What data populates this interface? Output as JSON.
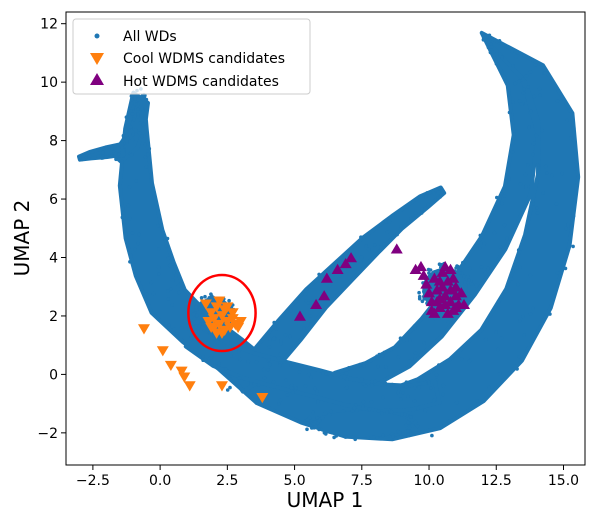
{
  "chart_data": {
    "type": "scatter",
    "xlabel": "UMAP 1",
    "ylabel": "UMAP 2",
    "xlim": [
      -3.5,
      15.8
    ],
    "ylim": [
      -3.1,
      12.4
    ],
    "xticks": [
      -2.5,
      0.0,
      2.5,
      5.0,
      7.5,
      10.0,
      12.5,
      15.0
    ],
    "xtick_labels": [
      "−2.5",
      "0.0",
      "2.5",
      "5.0",
      "7.5",
      "10.0",
      "12.5",
      "15.0"
    ],
    "yticks": [
      -2,
      0,
      2,
      4,
      6,
      8,
      10,
      12
    ],
    "ytick_labels": [
      "−2",
      "0",
      "2",
      "4",
      "6",
      "8",
      "10",
      "12"
    ],
    "legend_position": "top-left",
    "series": [
      {
        "name": "All WDs",
        "marker": "dot",
        "color": "#1f77b4",
        "bands": [
          {
            "part": "main-arc",
            "points": [
              [
                -1.6,
                7.4
              ],
              [
                -1.1,
                7.9
              ],
              [
                -0.85,
                8.6
              ],
              [
                -0.7,
                9.3
              ],
              [
                -0.8,
                9.6
              ],
              [
                -0.9,
                8.4
              ],
              [
                -0.9,
                6.5
              ],
              [
                -0.6,
                4.8
              ],
              [
                -0.2,
                3.6
              ],
              [
                0.3,
                2.5
              ],
              [
                1.3,
                1.6
              ],
              [
                2.6,
                0.7
              ],
              [
                4.0,
                -0.4
              ],
              [
                5.5,
                -1.0
              ],
              [
                7.0,
                -1.4
              ],
              [
                8.5,
                -1.4
              ],
              [
                10.0,
                -1.0
              ],
              [
                11.4,
                -0.2
              ],
              [
                12.7,
                1.0
              ],
              [
                13.7,
                2.6
              ],
              [
                14.4,
                4.6
              ],
              [
                14.8,
                6.8
              ],
              [
                14.7,
                8.8
              ],
              [
                13.9,
                10.3
              ],
              [
                12.0,
                11.6
              ],
              [
                13.2,
                10.0
              ],
              [
                13.6,
                8.2
              ],
              [
                13.3,
                6.3
              ],
              [
                12.4,
                4.5
              ],
              [
                11.3,
                3.0
              ],
              [
                10.1,
                1.6
              ],
              [
                9.0,
                0.6
              ],
              [
                7.8,
                0.0
              ],
              [
                6.6,
                -0.3
              ]
            ],
            "halfwidths": [
              0.2,
              0.3,
              0.3,
              0.25,
              0.2,
              0.4,
              0.6,
              0.7,
              0.75,
              0.75,
              0.7,
              0.7,
              0.75,
              0.75,
              0.8,
              0.9,
              1.0,
              1.0,
              0.95,
              0.9,
              0.85,
              0.75,
              0.65,
              0.45,
              0.1,
              0.3,
              0.45,
              0.5,
              0.5,
              0.5,
              0.5,
              0.45,
              0.45,
              0.4
            ]
          },
          {
            "part": "diagonal-branch",
            "points": [
              [
                2.8,
                -0.2
              ],
              [
                3.8,
                0.4
              ],
              [
                4.8,
                1.5
              ],
              [
                5.8,
                2.6
              ],
              [
                6.8,
                3.5
              ],
              [
                7.8,
                4.4
              ],
              [
                8.8,
                5.2
              ],
              [
                9.8,
                5.9
              ],
              [
                10.5,
                6.3
              ]
            ],
            "halfwidths": [
              0.5,
              0.55,
              0.55,
              0.5,
              0.45,
              0.4,
              0.3,
              0.25,
              0.12
            ]
          },
          {
            "part": "lower-arc",
            "points": [
              [
                1.2,
                1.3
              ],
              [
                2.2,
                0.7
              ],
              [
                3.3,
                0.3
              ],
              [
                4.5,
                0.0
              ],
              [
                5.8,
                -0.3
              ],
              [
                7.0,
                -0.6
              ],
              [
                8.2,
                -0.8
              ],
              [
                9.3,
                -0.8
              ],
              [
                10.3,
                -0.6
              ]
            ],
            "halfwidths": [
              0.45,
              0.5,
              0.5,
              0.5,
              0.5,
              0.5,
              0.5,
              0.45,
              0.4
            ]
          },
          {
            "part": "tail",
            "points": [
              [
                -3.0,
                7.4
              ],
              [
                -2.6,
                7.5
              ],
              [
                -2.0,
                7.6
              ],
              [
                -1.4,
                7.7
              ]
            ],
            "halfwidths": [
              0.06,
              0.12,
              0.18,
              0.2
            ]
          }
        ],
        "blobs": [
          {
            "part": "right-cluster",
            "cx": 10.6,
            "cy": 2.9,
            "rx": 0.85,
            "ry": 0.75
          },
          {
            "part": "left-cluster",
            "cx": 2.0,
            "cy": 2.1,
            "rx": 0.65,
            "ry": 0.55
          },
          {
            "part": "arc-bottom",
            "cx": 7.5,
            "cy": -1.7,
            "rx": 1.8,
            "ry": 0.45
          }
        ]
      },
      {
        "name": "Cool WDMS candidates",
        "marker": "triangle-down",
        "color": "#ff7f0e",
        "points": [
          [
            -0.6,
            1.55
          ],
          [
            0.1,
            0.8
          ],
          [
            0.4,
            0.3
          ],
          [
            0.8,
            0.1
          ],
          [
            0.9,
            -0.1
          ],
          [
            1.1,
            -0.4
          ],
          [
            2.3,
            -0.4
          ],
          [
            3.8,
            -0.8
          ],
          [
            1.7,
            2.4
          ],
          [
            1.9,
            2.1
          ],
          [
            2.0,
            1.9
          ],
          [
            2.1,
            2.3
          ],
          [
            2.2,
            1.7
          ],
          [
            2.3,
            2.0
          ],
          [
            2.4,
            2.2
          ],
          [
            2.5,
            1.8
          ],
          [
            2.6,
            1.6
          ],
          [
            2.7,
            1.9
          ],
          [
            2.8,
            1.7
          ],
          [
            2.9,
            1.6
          ],
          [
            3.0,
            1.8
          ],
          [
            1.8,
            1.8
          ],
          [
            2.2,
            2.5
          ],
          [
            2.4,
            1.5
          ],
          [
            2.0,
            1.6
          ],
          [
            2.5,
            2.3
          ],
          [
            2.7,
            2.1
          ],
          [
            1.9,
            1.6
          ],
          [
            2.1,
            1.4
          ],
          [
            2.3,
            1.4
          ]
        ]
      },
      {
        "name": "Hot WDMS candidates",
        "marker": "triangle-up",
        "color": "#800080",
        "points": [
          [
            5.2,
            2.0
          ],
          [
            5.8,
            2.4
          ],
          [
            6.1,
            2.7
          ],
          [
            6.2,
            3.3
          ],
          [
            6.6,
            3.6
          ],
          [
            6.9,
            3.8
          ],
          [
            7.1,
            4.0
          ],
          [
            8.8,
            4.3
          ],
          [
            9.5,
            3.6
          ],
          [
            9.8,
            3.4
          ],
          [
            9.9,
            3.1
          ],
          [
            10.0,
            2.8
          ],
          [
            10.1,
            2.5
          ],
          [
            10.1,
            2.2
          ],
          [
            10.2,
            3.3
          ],
          [
            10.3,
            2.9
          ],
          [
            10.4,
            2.6
          ],
          [
            10.4,
            2.3
          ],
          [
            10.5,
            3.5
          ],
          [
            10.5,
            3.0
          ],
          [
            10.6,
            2.7
          ],
          [
            10.6,
            2.4
          ],
          [
            10.7,
            3.2
          ],
          [
            10.7,
            2.1
          ],
          [
            10.8,
            2.9
          ],
          [
            10.8,
            2.5
          ],
          [
            10.9,
            3.3
          ],
          [
            10.9,
            2.2
          ],
          [
            11.0,
            2.7
          ],
          [
            11.0,
            3.0
          ],
          [
            11.1,
            2.4
          ],
          [
            11.2,
            2.8
          ],
          [
            11.3,
            2.4
          ],
          [
            10.2,
            2.1
          ],
          [
            10.4,
            3.2
          ],
          [
            10.6,
            3.7
          ],
          [
            10.8,
            3.6
          ],
          [
            11.0,
            2.3
          ],
          [
            9.7,
            3.7
          ],
          [
            10.3,
            2.5
          ]
        ]
      }
    ],
    "annotations": [
      {
        "type": "circle",
        "color": "#ff0000",
        "cx": 2.3,
        "cy": 2.1,
        "rx": 1.25,
        "ry": 1.3
      }
    ]
  },
  "legend": {
    "items": [
      {
        "label": "All WDs"
      },
      {
        "label": "Cool WDMS candidates"
      },
      {
        "label": "Hot WDMS candidates"
      }
    ]
  }
}
